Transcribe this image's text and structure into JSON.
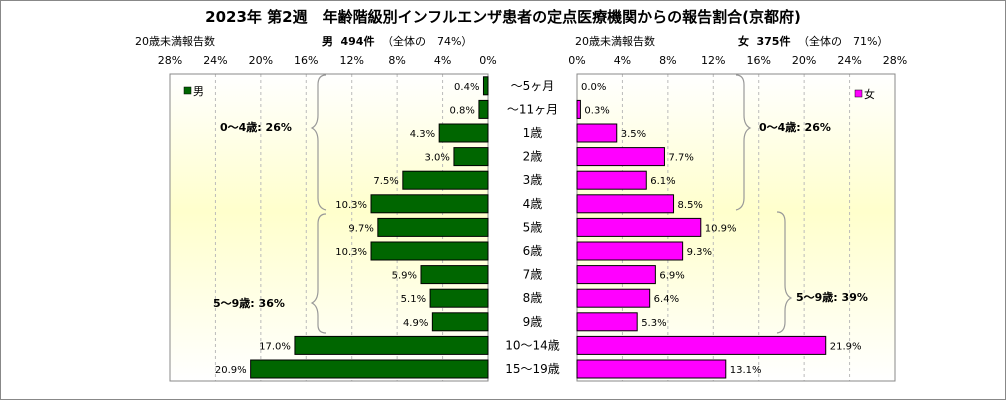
{
  "title": "2023年 第2週　年齢階級別インフルエンザ患者の定点医療機関からの報告割合(京都府)",
  "left_panel": {
    "sub_label": "20歳未満報告数",
    "header_prefix": "男",
    "header_count": "494件",
    "header_suffix": "（全体の　74%）",
    "legend": "男"
  },
  "right_panel": {
    "sub_label": "20歳未満報告数",
    "header_prefix": "女",
    "header_count": "375件",
    "header_suffix": "（全体の　71%）",
    "legend": "女"
  },
  "axis_ticks": [
    "0%",
    "4%",
    "8%",
    "12%",
    "16%",
    "20%",
    "24%",
    "28%"
  ],
  "group_labels": {
    "male_0_4": "0～4歳: 26%",
    "male_5_9": "5～9歳: 36%",
    "female_0_4": "0～4歳: 26%",
    "female_5_9": "5～9歳: 39%"
  },
  "colors": {
    "male": "#006600",
    "female": "#ff00ff",
    "plot_bg_top": "#ffffff",
    "plot_bg_mid": "#ffffcc"
  },
  "chart_data": {
    "type": "bar",
    "orientation": "horizontal-pyramid",
    "categories": [
      "～5ヶ月",
      "～11ヶ月",
      "1歳",
      "2歳",
      "3歳",
      "4歳",
      "5歳",
      "6歳",
      "7歳",
      "8歳",
      "9歳",
      "10～14歳",
      "15～19歳"
    ],
    "series": [
      {
        "name": "男",
        "values": [
          0.4,
          0.8,
          4.3,
          3.0,
          7.5,
          10.3,
          9.7,
          10.3,
          5.9,
          5.1,
          4.9,
          17.0,
          20.9
        ]
      },
      {
        "name": "女",
        "values": [
          0.0,
          0.3,
          3.5,
          7.7,
          6.1,
          8.5,
          10.9,
          9.3,
          6.9,
          6.4,
          5.3,
          21.9,
          13.1
        ]
      }
    ],
    "value_labels": {
      "male": [
        "0.4%",
        "0.8%",
        "4.3%",
        "3.0%",
        "7.5%",
        "10.3%",
        "9.7%",
        "10.3%",
        "5.9%",
        "5.1%",
        "4.9%",
        "17.0%",
        "20.9%"
      ],
      "female": [
        "0.0%",
        "0.3%",
        "3.5%",
        "7.7%",
        "6.1%",
        "8.5%",
        "10.9%",
        "9.3%",
        "6.9%",
        "6.4%",
        "5.3%",
        "21.9%",
        "13.1%"
      ]
    },
    "xlim": [
      0,
      28
    ],
    "grid": true,
    "legend_position": "top-outer-corners"
  }
}
